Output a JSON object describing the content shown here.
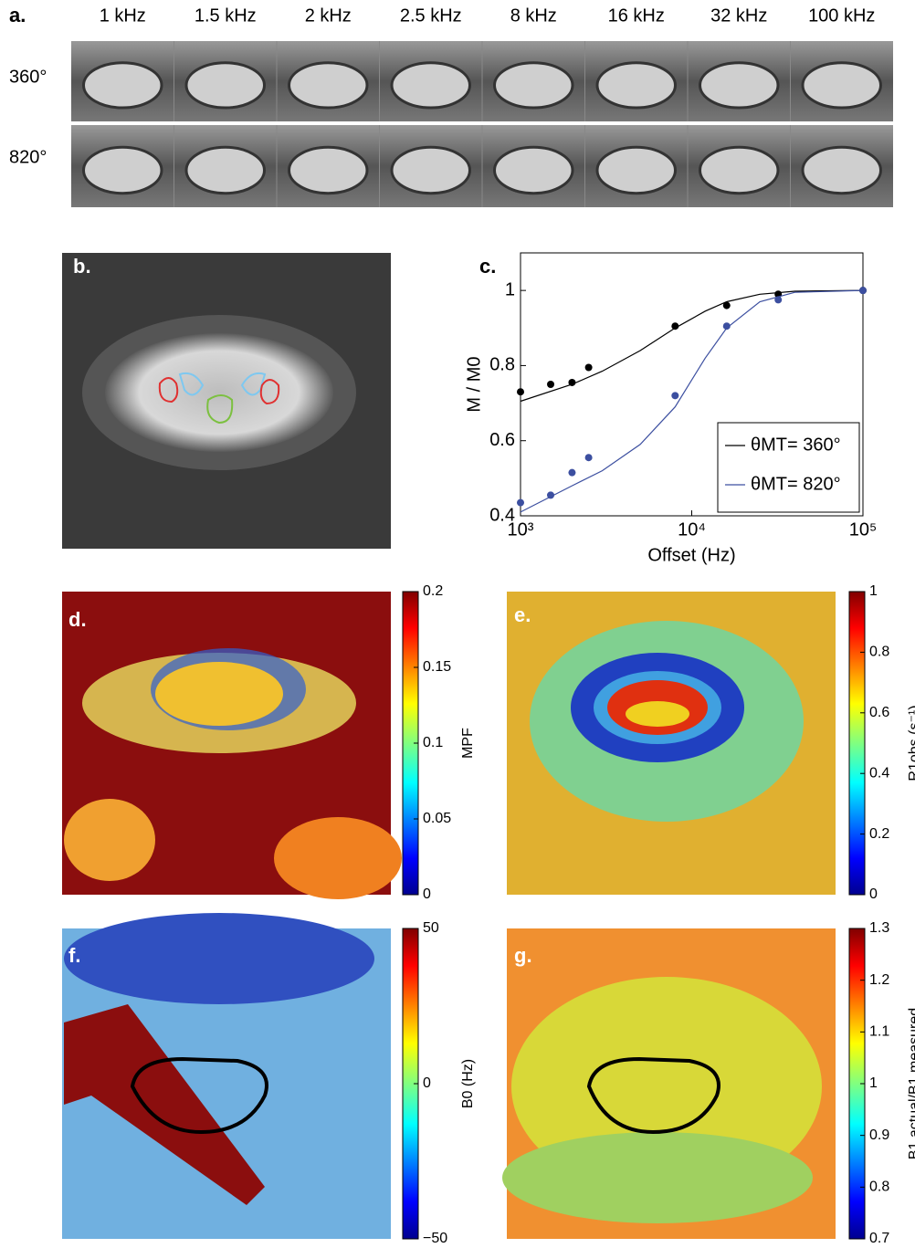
{
  "panel_a": {
    "label": "a.",
    "columns": [
      "1 kHz",
      "1.5 kHz",
      "2 kHz",
      "2.5 kHz",
      "8 kHz",
      "16 kHz",
      "32 kHz",
      "100 kHz"
    ],
    "rows": [
      "360°",
      "820°"
    ]
  },
  "panel_b": {
    "label": "b."
  },
  "chart_data": {
    "type": "line",
    "label": "c.",
    "xlabel": "Offset (Hz)",
    "ylabel": "M / M0",
    "log_x": true,
    "xlim": [
      1000,
      100000
    ],
    "xticks": [
      {
        "value": 1000,
        "label": "10³"
      },
      {
        "value": 10000,
        "label": "10⁴"
      },
      {
        "value": 100000,
        "label": "10⁵"
      }
    ],
    "ylim": [
      0.4,
      1.1
    ],
    "yticks": [
      0.4,
      0.6,
      0.8,
      1
    ],
    "legend": "lower-right",
    "x": [
      1000,
      1500,
      2000,
      2500,
      8000,
      16000,
      32000,
      100000
    ],
    "fit_x": [
      1000,
      2000,
      3000,
      5000,
      8000,
      12000,
      16000,
      25000,
      40000,
      100000
    ],
    "series": [
      {
        "name": "θMT= 360°",
        "color": "#000000",
        "values": [
          0.73,
          0.75,
          0.755,
          0.795,
          0.905,
          0.96,
          0.99,
          1.0
        ],
        "fit_values": [
          0.705,
          0.75,
          0.785,
          0.84,
          0.9,
          0.945,
          0.97,
          0.99,
          0.998,
          1.0
        ]
      },
      {
        "name": "θMT= 820°",
        "color": "#3c4fa0",
        "values": [
          0.435,
          0.455,
          0.515,
          0.555,
          0.72,
          0.905,
          0.975,
          1.0
        ],
        "fit_values": [
          0.41,
          0.48,
          0.52,
          0.59,
          0.69,
          0.82,
          0.9,
          0.97,
          0.995,
          1.0
        ]
      }
    ]
  },
  "panel_d": {
    "label": "d.",
    "colorbar_label": "MPF",
    "clim": [
      0,
      0.2
    ],
    "ticks": [
      0,
      0.05,
      0.1,
      0.15,
      0.2
    ]
  },
  "panel_e": {
    "label": "e.",
    "colorbar_label": "R1obs (s⁻¹)",
    "clim": [
      0,
      1
    ],
    "ticks": [
      0,
      0.2,
      0.4,
      0.6,
      0.8,
      1
    ]
  },
  "panel_f": {
    "label": "f.",
    "colorbar_label": "B0 (Hz)",
    "clim": [
      -50,
      50
    ],
    "ticks": [
      {
        "value": -50,
        "label": "−50"
      },
      0,
      50
    ]
  },
  "panel_g": {
    "label": "g.",
    "colorbar_label": "B1,actual/B1,measured",
    "clim": [
      0.7,
      1.3
    ],
    "ticks": [
      0.7,
      0.8,
      0.9,
      1,
      1.1,
      1.2,
      1.3
    ]
  }
}
